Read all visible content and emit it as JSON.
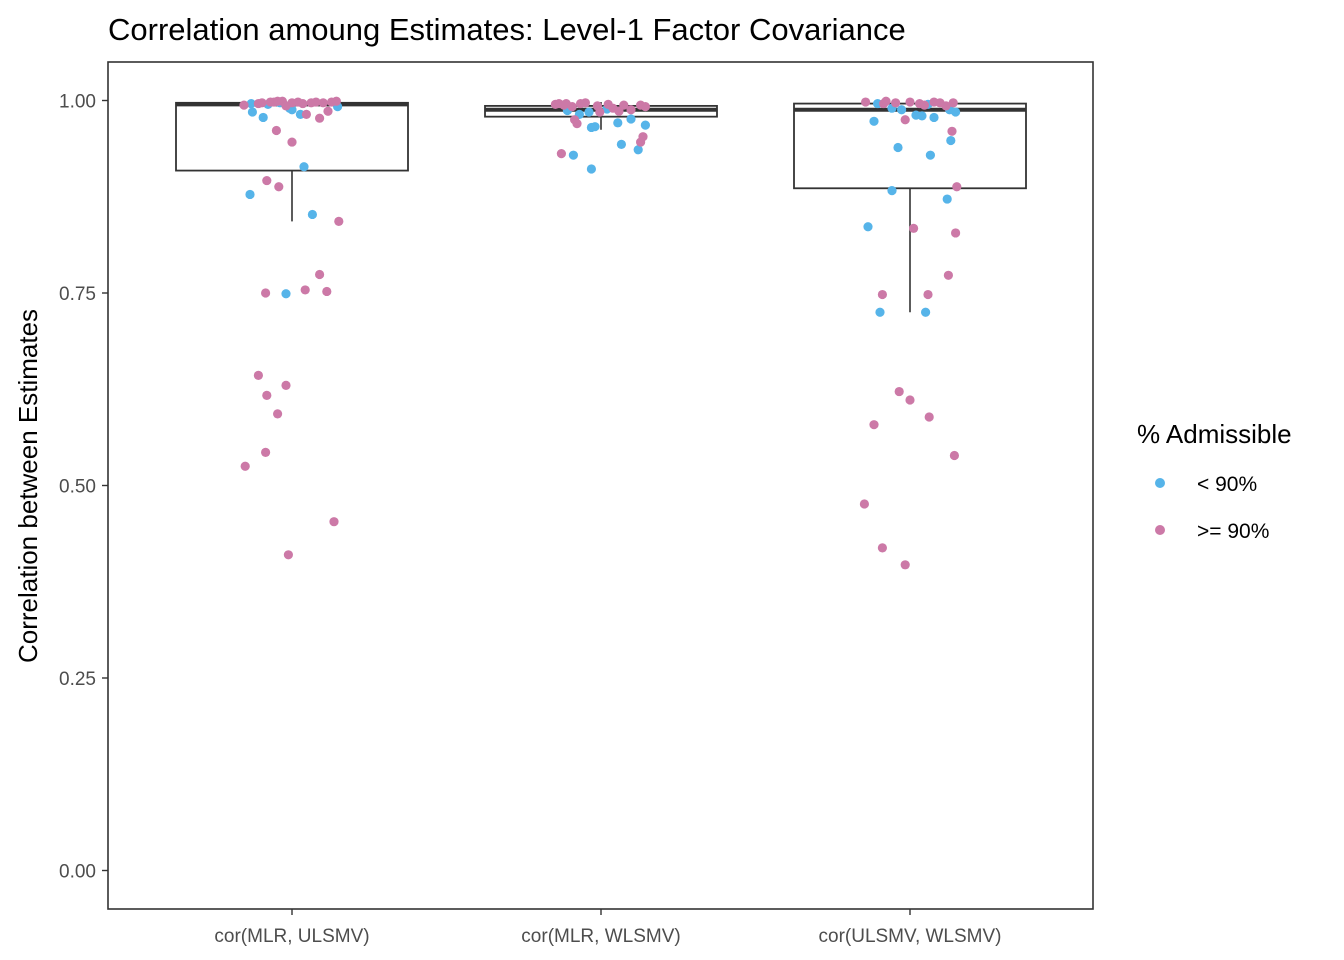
{
  "chart_data": {
    "type": "boxplot",
    "title": "Correlation amoung Estimates: Level-1 Factor Covariance",
    "xlabel": "",
    "ylabel": "Correlation between Estimates",
    "ylim": [
      -0.05,
      1.05
    ],
    "yticks": [
      0.0,
      0.25,
      0.5,
      0.75,
      1.0
    ],
    "ytick_labels": [
      "0.00",
      "0.25",
      "0.50",
      "0.75",
      "1.00"
    ],
    "categories": [
      "cor(MLR, ULSMV)",
      "cor(MLR, WLSMV)",
      "cor(ULSMV, WLSMV)"
    ],
    "legend": {
      "title": "% Admissible",
      "position": "right",
      "entries": [
        {
          "label": "< 90%",
          "color": "#56b4e9"
        },
        {
          "label": ">= 90%",
          "color": "#cc79a7"
        }
      ]
    },
    "boxes": [
      {
        "category": "cor(MLR, ULSMV)",
        "min": 0.843,
        "q1": 0.909,
        "median": 0.995,
        "q3": 0.997,
        "max": 0.999
      },
      {
        "category": "cor(MLR, WLSMV)",
        "min": 0.962,
        "q1": 0.979,
        "median": 0.988,
        "q3": 0.993,
        "max": 0.998
      },
      {
        "category": "cor(ULSMV, WLSMV)",
        "min": 0.725,
        "q1": 0.886,
        "median": 0.988,
        "q3": 0.996,
        "max": 0.999
      }
    ],
    "series": [
      {
        "name": "< 90%",
        "color": "#56b4e9",
        "points": [
          {
            "category": "cor(MLR, ULSMV)",
            "jitter": -0.35,
            "y": 0.878
          },
          {
            "category": "cor(MLR, ULSMV)",
            "jitter": 0.17,
            "y": 0.852
          },
          {
            "category": "cor(MLR, ULSMV)",
            "jitter": 0.1,
            "y": 0.914
          },
          {
            "category": "cor(MLR, ULSMV)",
            "jitter": -0.05,
            "y": 0.749
          },
          {
            "category": "cor(MLR, ULSMV)",
            "jitter": -0.34,
            "y": 0.996
          },
          {
            "category": "cor(MLR, ULSMV)",
            "jitter": -0.33,
            "y": 0.985
          },
          {
            "category": "cor(MLR, ULSMV)",
            "jitter": -0.24,
            "y": 0.978
          },
          {
            "category": "cor(MLR, ULSMV)",
            "jitter": -0.2,
            "y": 0.995
          },
          {
            "category": "cor(MLR, ULSMV)",
            "jitter": -0.02,
            "y": 0.99
          },
          {
            "category": "cor(MLR, ULSMV)",
            "jitter": 0.0,
            "y": 0.988
          },
          {
            "category": "cor(MLR, ULSMV)",
            "jitter": 0.07,
            "y": 0.982
          },
          {
            "category": "cor(MLR, ULSMV)",
            "jitter": 0.38,
            "y": 0.992
          },
          {
            "category": "cor(MLR, ULSMV)",
            "jitter": -0.1,
            "y": 0.997
          },
          {
            "category": "cor(MLR, WLSMV)",
            "jitter": -0.23,
            "y": 0.929
          },
          {
            "category": "cor(MLR, WLSMV)",
            "jitter": -0.08,
            "y": 0.911
          },
          {
            "category": "cor(MLR, WLSMV)",
            "jitter": 0.17,
            "y": 0.943
          },
          {
            "category": "cor(MLR, WLSMV)",
            "jitter": 0.31,
            "y": 0.936
          },
          {
            "category": "cor(MLR, WLSMV)",
            "jitter": -0.18,
            "y": 0.982
          },
          {
            "category": "cor(MLR, WLSMV)",
            "jitter": -0.1,
            "y": 0.985
          },
          {
            "category": "cor(MLR, WLSMV)",
            "jitter": -0.05,
            "y": 0.966
          },
          {
            "category": "cor(MLR, WLSMV)",
            "jitter": -0.08,
            "y": 0.965
          },
          {
            "category": "cor(MLR, WLSMV)",
            "jitter": 0.14,
            "y": 0.971
          },
          {
            "category": "cor(MLR, WLSMV)",
            "jitter": 0.25,
            "y": 0.976
          },
          {
            "category": "cor(MLR, WLSMV)",
            "jitter": 0.37,
            "y": 0.968
          },
          {
            "category": "cor(MLR, WLSMV)",
            "jitter": 0.05,
            "y": 0.989
          },
          {
            "category": "cor(MLR, WLSMV)",
            "jitter": -0.28,
            "y": 0.987
          },
          {
            "category": "cor(ULSMV, WLSMV)",
            "jitter": -0.35,
            "y": 0.836
          },
          {
            "category": "cor(ULSMV, WLSMV)",
            "jitter": -0.25,
            "y": 0.725
          },
          {
            "category": "cor(ULSMV, WLSMV)",
            "jitter": -0.15,
            "y": 0.883
          },
          {
            "category": "cor(ULSMV, WLSMV)",
            "jitter": -0.1,
            "y": 0.939
          },
          {
            "category": "cor(ULSMV, WLSMV)",
            "jitter": 0.13,
            "y": 0.725
          },
          {
            "category": "cor(ULSMV, WLSMV)",
            "jitter": 0.17,
            "y": 0.929
          },
          {
            "category": "cor(ULSMV, WLSMV)",
            "jitter": 0.31,
            "y": 0.872
          },
          {
            "category": "cor(ULSMV, WLSMV)",
            "jitter": 0.34,
            "y": 0.948
          },
          {
            "category": "cor(ULSMV, WLSMV)",
            "jitter": -0.3,
            "y": 0.973
          },
          {
            "category": "cor(ULSMV, WLSMV)",
            "jitter": -0.27,
            "y": 0.996
          },
          {
            "category": "cor(ULSMV, WLSMV)",
            "jitter": -0.15,
            "y": 0.99
          },
          {
            "category": "cor(ULSMV, WLSMV)",
            "jitter": -0.07,
            "y": 0.988
          },
          {
            "category": "cor(ULSMV, WLSMV)",
            "jitter": 0.05,
            "y": 0.981
          },
          {
            "category": "cor(ULSMV, WLSMV)",
            "jitter": 0.1,
            "y": 0.98
          },
          {
            "category": "cor(ULSMV, WLSMV)",
            "jitter": 0.15,
            "y": 0.995
          },
          {
            "category": "cor(ULSMV, WLSMV)",
            "jitter": 0.2,
            "y": 0.978
          },
          {
            "category": "cor(ULSMV, WLSMV)",
            "jitter": 0.33,
            "y": 0.988
          },
          {
            "category": "cor(ULSMV, WLSMV)",
            "jitter": 0.38,
            "y": 0.985
          }
        ]
      },
      {
        "name": ">= 90%",
        "color": "#cc79a7",
        "points": [
          {
            "category": "cor(MLR, ULSMV)",
            "jitter": -0.39,
            "y": 0.525
          },
          {
            "category": "cor(MLR, ULSMV)",
            "jitter": -0.28,
            "y": 0.643
          },
          {
            "category": "cor(MLR, ULSMV)",
            "jitter": -0.22,
            "y": 0.75
          },
          {
            "category": "cor(MLR, ULSMV)",
            "jitter": -0.21,
            "y": 0.617
          },
          {
            "category": "cor(MLR, ULSMV)",
            "jitter": -0.22,
            "y": 0.543
          },
          {
            "category": "cor(MLR, ULSMV)",
            "jitter": -0.12,
            "y": 0.593
          },
          {
            "category": "cor(MLR, ULSMV)",
            "jitter": -0.05,
            "y": 0.63
          },
          {
            "category": "cor(MLR, ULSMV)",
            "jitter": -0.03,
            "y": 0.41
          },
          {
            "category": "cor(MLR, ULSMV)",
            "jitter": 0.11,
            "y": 0.754
          },
          {
            "category": "cor(MLR, ULSMV)",
            "jitter": 0.23,
            "y": 0.774
          },
          {
            "category": "cor(MLR, ULSMV)",
            "jitter": 0.29,
            "y": 0.752
          },
          {
            "category": "cor(MLR, ULSMV)",
            "jitter": 0.35,
            "y": 0.453
          },
          {
            "category": "cor(MLR, ULSMV)",
            "jitter": 0.39,
            "y": 0.843
          },
          {
            "category": "cor(MLR, ULSMV)",
            "jitter": -0.21,
            "y": 0.896
          },
          {
            "category": "cor(MLR, ULSMV)",
            "jitter": -0.11,
            "y": 0.888
          },
          {
            "category": "cor(MLR, ULSMV)",
            "jitter": -0.13,
            "y": 0.961
          },
          {
            "category": "cor(MLR, ULSMV)",
            "jitter": 0.0,
            "y": 0.946
          },
          {
            "category": "cor(MLR, ULSMV)",
            "jitter": -0.4,
            "y": 0.994
          },
          {
            "category": "cor(MLR, ULSMV)",
            "jitter": -0.28,
            "y": 0.996
          },
          {
            "category": "cor(MLR, ULSMV)",
            "jitter": -0.25,
            "y": 0.997
          },
          {
            "category": "cor(MLR, ULSMV)",
            "jitter": -0.18,
            "y": 0.998
          },
          {
            "category": "cor(MLR, ULSMV)",
            "jitter": -0.15,
            "y": 0.998
          },
          {
            "category": "cor(MLR, ULSMV)",
            "jitter": -0.12,
            "y": 0.999
          },
          {
            "category": "cor(MLR, ULSMV)",
            "jitter": -0.08,
            "y": 0.999
          },
          {
            "category": "cor(MLR, ULSMV)",
            "jitter": -0.05,
            "y": 0.993
          },
          {
            "category": "cor(MLR, ULSMV)",
            "jitter": 0.0,
            "y": 0.997
          },
          {
            "category": "cor(MLR, ULSMV)",
            "jitter": 0.05,
            "y": 0.998
          },
          {
            "category": "cor(MLR, ULSMV)",
            "jitter": 0.09,
            "y": 0.996
          },
          {
            "category": "cor(MLR, ULSMV)",
            "jitter": 0.12,
            "y": 0.982
          },
          {
            "category": "cor(MLR, ULSMV)",
            "jitter": 0.16,
            "y": 0.997
          },
          {
            "category": "cor(MLR, ULSMV)",
            "jitter": 0.2,
            "y": 0.998
          },
          {
            "category": "cor(MLR, ULSMV)",
            "jitter": 0.23,
            "y": 0.977
          },
          {
            "category": "cor(MLR, ULSMV)",
            "jitter": 0.26,
            "y": 0.997
          },
          {
            "category": "cor(MLR, ULSMV)",
            "jitter": 0.3,
            "y": 0.986
          },
          {
            "category": "cor(MLR, ULSMV)",
            "jitter": 0.33,
            "y": 0.998
          },
          {
            "category": "cor(MLR, ULSMV)",
            "jitter": 0.37,
            "y": 0.999
          },
          {
            "category": "cor(MLR, WLSMV)",
            "jitter": -0.33,
            "y": 0.931
          },
          {
            "category": "cor(MLR, WLSMV)",
            "jitter": 0.33,
            "y": 0.946
          },
          {
            "category": "cor(MLR, WLSMV)",
            "jitter": 0.35,
            "y": 0.953
          },
          {
            "category": "cor(MLR, WLSMV)",
            "jitter": -0.38,
            "y": 0.995
          },
          {
            "category": "cor(MLR, WLSMV)",
            "jitter": -0.35,
            "y": 0.996
          },
          {
            "category": "cor(MLR, WLSMV)",
            "jitter": -0.31,
            "y": 0.994
          },
          {
            "category": "cor(MLR, WLSMV)",
            "jitter": -0.29,
            "y": 0.996
          },
          {
            "category": "cor(MLR, WLSMV)",
            "jitter": -0.24,
            "y": 0.992
          },
          {
            "category": "cor(MLR, WLSMV)",
            "jitter": -0.22,
            "y": 0.975
          },
          {
            "category": "cor(MLR, WLSMV)",
            "jitter": -0.2,
            "y": 0.97
          },
          {
            "category": "cor(MLR, WLSMV)",
            "jitter": -0.17,
            "y": 0.996
          },
          {
            "category": "cor(MLR, WLSMV)",
            "jitter": -0.13,
            "y": 0.997
          },
          {
            "category": "cor(MLR, WLSMV)",
            "jitter": -0.03,
            "y": 0.993
          },
          {
            "category": "cor(MLR, WLSMV)",
            "jitter": -0.01,
            "y": 0.985
          },
          {
            "category": "cor(MLR, WLSMV)",
            "jitter": 0.06,
            "y": 0.995
          },
          {
            "category": "cor(MLR, WLSMV)",
            "jitter": 0.1,
            "y": 0.99
          },
          {
            "category": "cor(MLR, WLSMV)",
            "jitter": 0.15,
            "y": 0.986
          },
          {
            "category": "cor(MLR, WLSMV)",
            "jitter": 0.19,
            "y": 0.994
          },
          {
            "category": "cor(MLR, WLSMV)",
            "jitter": 0.25,
            "y": 0.988
          },
          {
            "category": "cor(MLR, WLSMV)",
            "jitter": 0.33,
            "y": 0.994
          },
          {
            "category": "cor(MLR, WLSMV)",
            "jitter": 0.37,
            "y": 0.992
          },
          {
            "category": "cor(ULSMV, WLSMV)",
            "jitter": -0.38,
            "y": 0.476
          },
          {
            "category": "cor(ULSMV, WLSMV)",
            "jitter": -0.3,
            "y": 0.579
          },
          {
            "category": "cor(ULSMV, WLSMV)",
            "jitter": -0.23,
            "y": 0.748
          },
          {
            "category": "cor(ULSMV, WLSMV)",
            "jitter": -0.23,
            "y": 0.419
          },
          {
            "category": "cor(ULSMV, WLSMV)",
            "jitter": -0.09,
            "y": 0.622
          },
          {
            "category": "cor(ULSMV, WLSMV)",
            "jitter": -0.04,
            "y": 0.397
          },
          {
            "category": "cor(ULSMV, WLSMV)",
            "jitter": 0.0,
            "y": 0.611
          },
          {
            "category": "cor(ULSMV, WLSMV)",
            "jitter": 0.03,
            "y": 0.834
          },
          {
            "category": "cor(ULSMV, WLSMV)",
            "jitter": 0.15,
            "y": 0.748
          },
          {
            "category": "cor(ULSMV, WLSMV)",
            "jitter": 0.16,
            "y": 0.589
          },
          {
            "category": "cor(ULSMV, WLSMV)",
            "jitter": 0.32,
            "y": 0.773
          },
          {
            "category": "cor(ULSMV, WLSMV)",
            "jitter": 0.37,
            "y": 0.539
          },
          {
            "category": "cor(ULSMV, WLSMV)",
            "jitter": 0.38,
            "y": 0.828
          },
          {
            "category": "cor(ULSMV, WLSMV)",
            "jitter": 0.39,
            "y": 0.888
          },
          {
            "category": "cor(ULSMV, WLSMV)",
            "jitter": 0.35,
            "y": 0.96
          },
          {
            "category": "cor(ULSMV, WLSMV)",
            "jitter": -0.37,
            "y": 0.998
          },
          {
            "category": "cor(ULSMV, WLSMV)",
            "jitter": -0.22,
            "y": 0.996
          },
          {
            "category": "cor(ULSMV, WLSMV)",
            "jitter": -0.2,
            "y": 0.999
          },
          {
            "category": "cor(ULSMV, WLSMV)",
            "jitter": -0.12,
            "y": 0.997
          },
          {
            "category": "cor(ULSMV, WLSMV)",
            "jitter": -0.04,
            "y": 0.975
          },
          {
            "category": "cor(ULSMV, WLSMV)",
            "jitter": 0.0,
            "y": 0.998
          },
          {
            "category": "cor(ULSMV, WLSMV)",
            "jitter": 0.08,
            "y": 0.996
          },
          {
            "category": "cor(ULSMV, WLSMV)",
            "jitter": 0.12,
            "y": 0.994
          },
          {
            "category": "cor(ULSMV, WLSMV)",
            "jitter": 0.2,
            "y": 0.998
          },
          {
            "category": "cor(ULSMV, WLSMV)",
            "jitter": 0.25,
            "y": 0.997
          },
          {
            "category": "cor(ULSMV, WLSMV)",
            "jitter": 0.3,
            "y": 0.993
          },
          {
            "category": "cor(ULSMV, WLSMV)",
            "jitter": 0.36,
            "y": 0.997
          }
        ]
      }
    ]
  }
}
